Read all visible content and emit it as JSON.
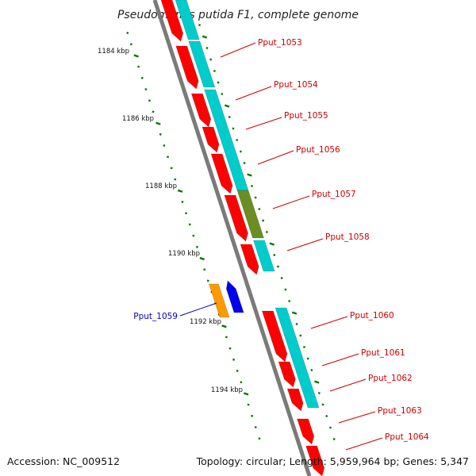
{
  "title": "Pseudomonas putida F1, complete genome",
  "footer": {
    "accession": "Accession: NC_009512",
    "topology": "Topology: circular; Length: 5,959,964 bp; Genes: 5,347"
  },
  "ticks": [
    "1184 kbp",
    "1186 kbp",
    "1188 kbp",
    "1190 kbp",
    "1192 kbp",
    "1194 kbp"
  ],
  "genes_labels": [
    "Pput_1053",
    "Pput_1054",
    "Pput_1055",
    "Pput_1056",
    "Pput_1057",
    "Pput_1058",
    "Pput_1059",
    "Pput_1060",
    "Pput_1061",
    "Pput_1062",
    "Pput_1063",
    "Pput_1064"
  ],
  "colors": {
    "backbone": "#7a7a7a",
    "gene_forward": "#ff0000",
    "cds": "#00cccc",
    "highlight_cds": "#6b8e23",
    "reverse_gene": "#0000ee",
    "reverse_cds": "#ff9900",
    "label_forward": "#cc0000",
    "label_reverse": "#0000cc",
    "ruler": "#007700"
  }
}
